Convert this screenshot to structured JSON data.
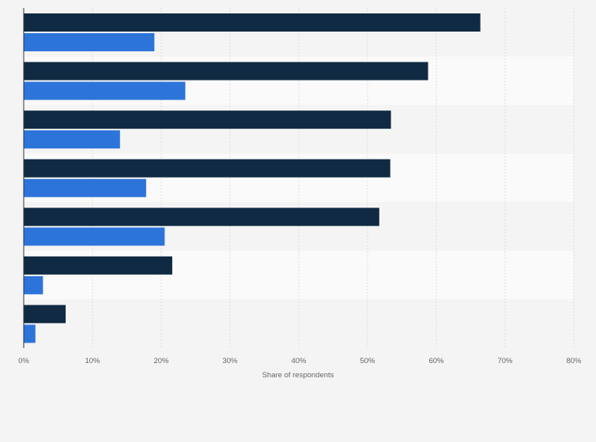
{
  "chart_data": {
    "type": "bar",
    "orientation": "horizontal",
    "categories": [
      "",
      "",
      "",
      "",
      "",
      "",
      ""
    ],
    "series": [
      {
        "values": [
          66.4,
          58.8,
          53.4,
          53.3,
          51.7,
          21.6,
          6.1
        ],
        "color": "#102a43"
      },
      {
        "values": [
          19.0,
          23.5,
          14.0,
          17.8,
          20.5,
          2.8,
          1.7
        ],
        "color": "#2d74da"
      }
    ],
    "xlabel": "Share of respondents",
    "xlim": [
      0,
      80
    ],
    "ticks": [
      {
        "value": 0,
        "label": "0%"
      },
      {
        "value": 10,
        "label": "10%"
      },
      {
        "value": 20,
        "label": "20%"
      },
      {
        "value": 30,
        "label": "30%"
      },
      {
        "value": 40,
        "label": "40%"
      },
      {
        "value": 50,
        "label": "50%"
      },
      {
        "value": 60,
        "label": "60%"
      },
      {
        "value": 70,
        "label": "70%"
      },
      {
        "value": 80,
        "label": "80%"
      }
    ],
    "grid": true,
    "legend": "none"
  }
}
